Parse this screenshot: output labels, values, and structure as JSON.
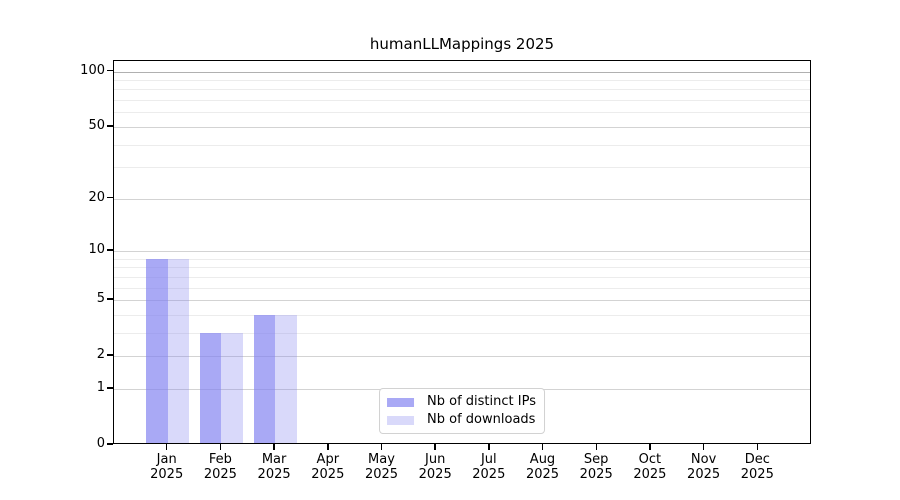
{
  "chart_data": {
    "type": "bar",
    "title": "humanLLMappings 2025",
    "categories": [
      "Jan",
      "Feb",
      "Mar",
      "Apr",
      "May",
      "Jun",
      "Jul",
      "Aug",
      "Sep",
      "Oct",
      "Nov",
      "Dec"
    ],
    "category_year": "2025",
    "series": [
      {
        "name": "Nb of distinct IPs",
        "color": "rgba(128,128,240,0.68)",
        "values": [
          9,
          3,
          4,
          0,
          0,
          0,
          0,
          0,
          0,
          0,
          0,
          0
        ]
      },
      {
        "name": "Nb of downloads",
        "color": "rgba(128,128,240,0.30)",
        "values": [
          9,
          3,
          4,
          0,
          0,
          0,
          0,
          0,
          0,
          0,
          0,
          0
        ]
      }
    ],
    "y_axis": {
      "scale": "log10(1+y)",
      "major_ticks": [
        0,
        1,
        2,
        5,
        10,
        20,
        50,
        100
      ],
      "minor_gridlines": [
        3,
        4,
        6,
        7,
        8,
        9,
        30,
        40,
        60,
        70,
        80,
        90
      ],
      "ylim": [
        0,
        114
      ]
    },
    "x_axis": {
      "ticks_per_month": true
    },
    "legend": {
      "position": "lower center",
      "entries": [
        "Nb of distinct IPs",
        "Nb of downloads"
      ]
    },
    "grid": true,
    "colors": {
      "bar_distinct_ips": "#a9a9f3",
      "bar_downloads": "#d9d9fa",
      "major_grid": "#d3d3d3",
      "minor_grid": "#ececec",
      "top_grid": "#b0b0b0",
      "axis": "#000000",
      "background": "#ffffff"
    }
  }
}
